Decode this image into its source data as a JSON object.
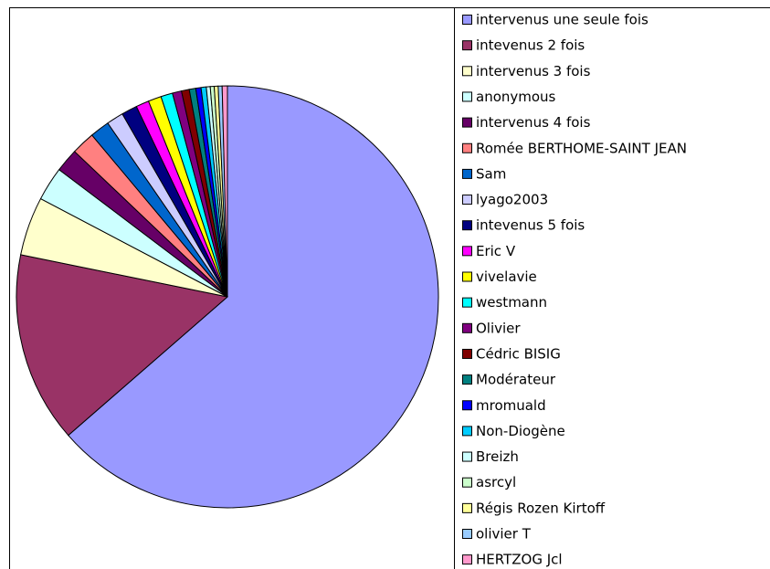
{
  "chart_data": {
    "type": "pie",
    "categories": [
      "intervenus une seule fois",
      "intevenus 2 fois",
      "intervenus 3 fois",
      "anonymous",
      "intervenus 4 fois",
      "Romée BERTHOME-SAINT JEAN",
      "Sam",
      "lyago2003",
      "intevenus 5 fois",
      "Eric V",
      "vivelavie",
      "westmann",
      "Olivier",
      "Cédric BISIG",
      "Modérateur",
      "mromuald",
      "Non-Diogène",
      "Breizh",
      "asrcyl",
      "Régis Rozen Kirtoff",
      "olivier T",
      "HERTZOG Jcl"
    ],
    "values": [
      63.6,
      14.6,
      4.5,
      2.6,
      1.8,
      1.8,
      1.5,
      1.3,
      1.2,
      1.0,
      1.0,
      0.9,
      0.7,
      0.6,
      0.5,
      0.4,
      0.4,
      0.3,
      0.3,
      0.3,
      0.3,
      0.4
    ],
    "colors": [
      "#9999ff",
      "#993366",
      "#ffffcc",
      "#ccffff",
      "#660066",
      "#ff8080",
      "#0066cc",
      "#ccccff",
      "#000080",
      "#ff00ff",
      "#ffff00",
      "#00ffff",
      "#800080",
      "#800000",
      "#008080",
      "#0000ff",
      "#00ccff",
      "#ccffff",
      "#ccffcc",
      "#ffff99",
      "#99ccff",
      "#ff99cc"
    ],
    "legend": "right"
  }
}
